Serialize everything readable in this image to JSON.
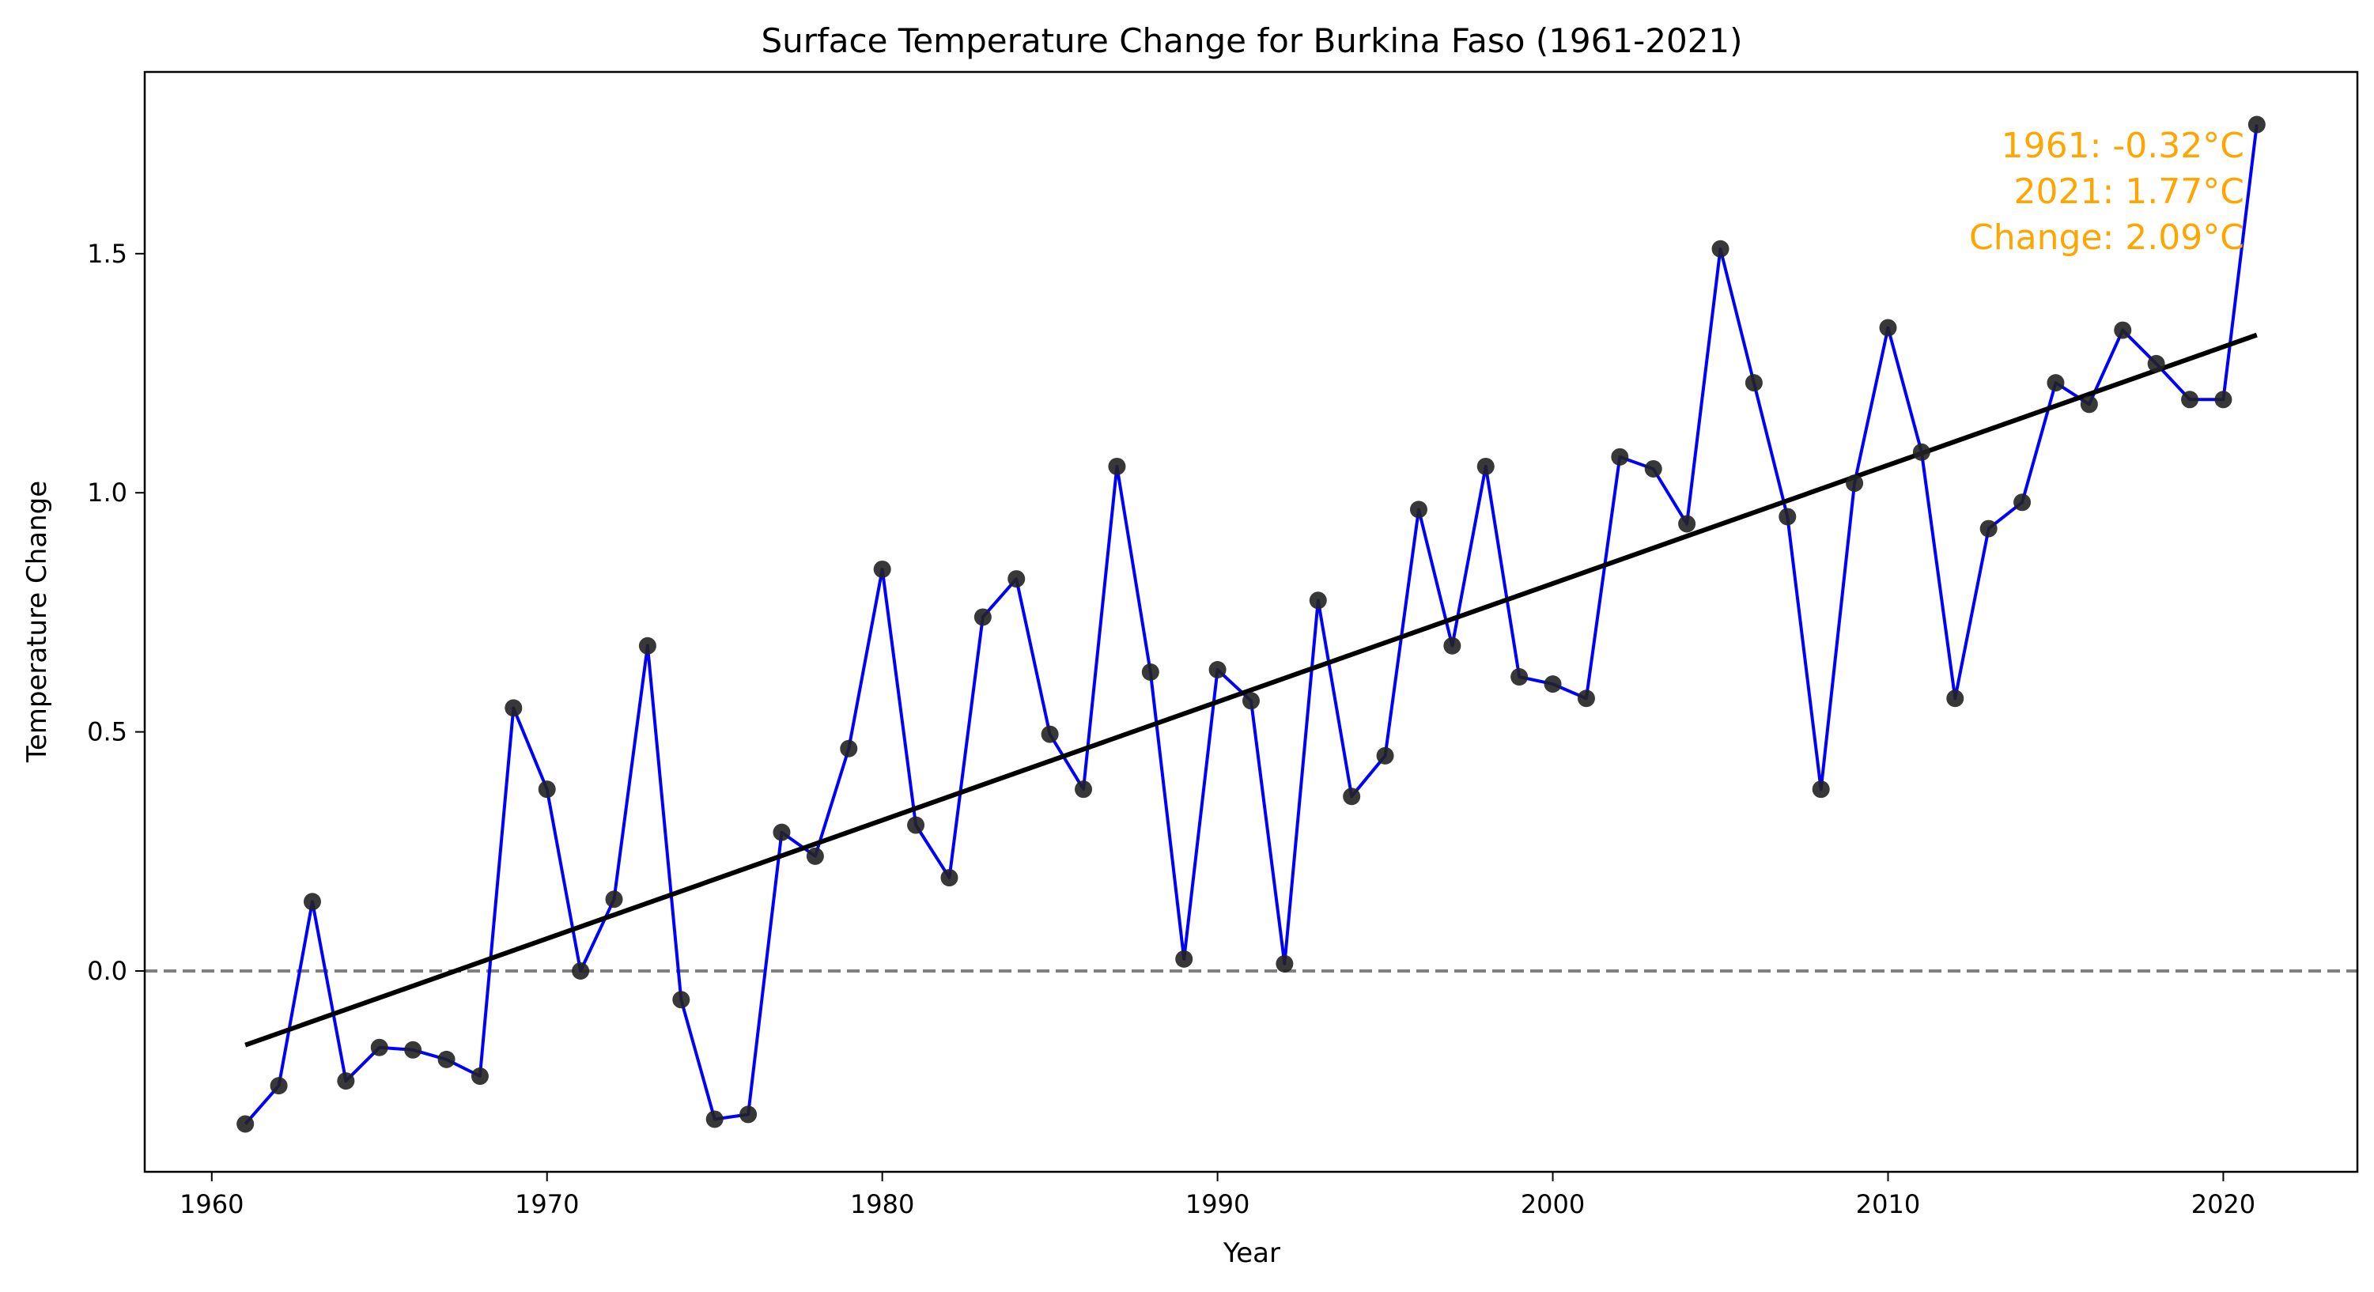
{
  "chart_data": {
    "type": "line",
    "title": "Surface Temperature Change for Burkina Faso (1961-2021)",
    "xlabel": "Year",
    "ylabel": "Temperature Change",
    "xlim": [
      1958.0,
      2024.0
    ],
    "ylim": [
      -0.42,
      1.88
    ],
    "xticks": [
      1960,
      1970,
      1980,
      1990,
      2000,
      2010,
      2020
    ],
    "yticks": [
      0.0,
      0.5,
      1.0,
      1.5
    ],
    "ytick_labels": [
      "0.0",
      "0.5",
      "1.0",
      "1.5"
    ],
    "grid": false,
    "series": [
      {
        "style": "line-with-markers",
        "color": "#0000FF",
        "marker_color": "#222222",
        "x": [
          1961,
          1962,
          1963,
          1964,
          1965,
          1966,
          1967,
          1968,
          1969,
          1970,
          1971,
          1972,
          1973,
          1974,
          1975,
          1976,
          1977,
          1978,
          1979,
          1980,
          1981,
          1982,
          1983,
          1984,
          1985,
          1986,
          1987,
          1988,
          1989,
          1990,
          1991,
          1992,
          1993,
          1994,
          1995,
          1996,
          1997,
          1998,
          1999,
          2000,
          2001,
          2002,
          2003,
          2004,
          2005,
          2006,
          2007,
          2008,
          2009,
          2010,
          2011,
          2012,
          2013,
          2014,
          2015,
          2016,
          2017,
          2018,
          2019,
          2020,
          2021
        ],
        "y": [
          -0.32,
          -0.24,
          0.145,
          -0.23,
          -0.16,
          -0.165,
          -0.185,
          -0.22,
          0.55,
          0.38,
          0.0,
          0.15,
          0.68,
          -0.06,
          -0.31,
          -0.3,
          0.29,
          0.24,
          0.465,
          0.84,
          0.305,
          0.195,
          0.74,
          0.82,
          0.495,
          0.38,
          1.055,
          0.625,
          0.025,
          0.63,
          0.565,
          0.015,
          0.775,
          0.365,
          0.45,
          0.965,
          0.68,
          1.055,
          0.615,
          0.6,
          0.57,
          1.075,
          1.05,
          0.935,
          1.51,
          1.23,
          0.95,
          0.38,
          1.02,
          1.345,
          1.085,
          0.57,
          0.925,
          0.98,
          1.23,
          1.185,
          1.34,
          1.27,
          1.195,
          1.195,
          1.77
        ]
      },
      {
        "style": "trend-line",
        "color": "#000000",
        "x": [
          1961,
          2021
        ],
        "y": [
          -0.155,
          1.33
        ]
      }
    ],
    "reference_line": {
      "y": 0.0,
      "color": "#808080",
      "style": "dashed"
    },
    "annotation": {
      "color": "#FFA500",
      "lines": [
        "1961: -0.32°C",
        "2021: 1.77°C",
        "Change: 2.09°C"
      ]
    }
  }
}
